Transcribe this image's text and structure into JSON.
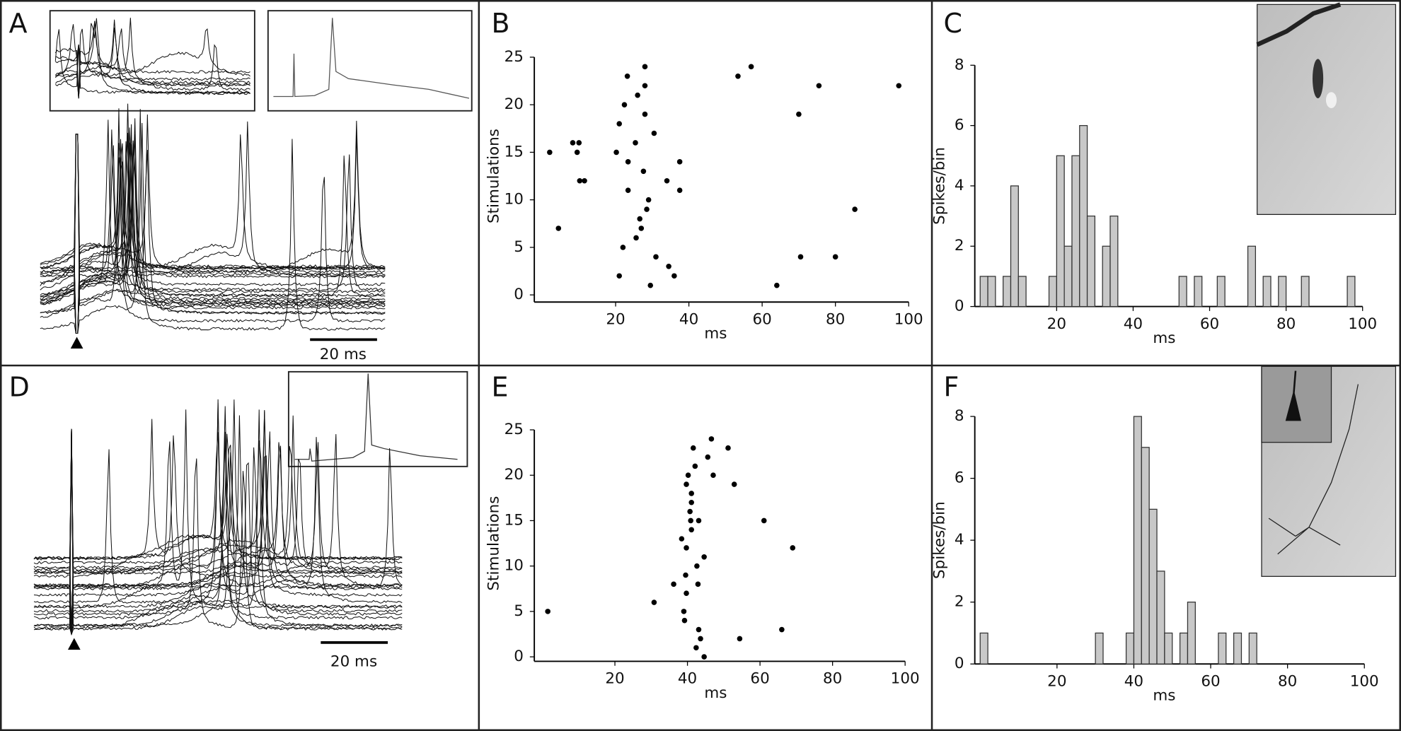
{
  "panel_labels": [
    "A",
    "B",
    "C",
    "D",
    "E",
    "F"
  ],
  "scale_bars": [
    "20 ms",
    "20 ms"
  ],
  "chart_data": [
    {
      "type": "scatter",
      "xlabel": "ms",
      "ylabel": "Stimulations",
      "color": "#000000",
      "x": [
        2,
        4.4,
        8.3,
        10,
        9.5,
        10.2,
        11.5,
        20.2,
        21,
        21,
        22,
        22.4,
        23.2,
        23.4,
        23.4,
        25.4,
        25.6,
        26,
        26.6,
        27,
        27.6,
        28,
        28,
        28,
        28.5,
        29,
        29.5,
        30.5,
        31,
        34,
        34.5,
        36,
        37.5,
        37.5,
        53.4,
        57,
        64,
        70,
        70.5,
        75.5,
        80,
        85.3,
        97.3
      ],
      "y": [
        15,
        7,
        16,
        16,
        15,
        12,
        12,
        15,
        18,
        2,
        5,
        20,
        23,
        14,
        11,
        16,
        6,
        21,
        8,
        7,
        13,
        24,
        22,
        19,
        9,
        10,
        1,
        17,
        4,
        12,
        3,
        2,
        11,
        14,
        23,
        24,
        1,
        19,
        4,
        22,
        4,
        9,
        22
      ],
      "xlim": [
        0,
        100
      ],
      "ylim": [
        0,
        25
      ],
      "xticks": [
        20,
        40,
        60,
        80,
        100
      ],
      "yticks": [
        0,
        5,
        10,
        15,
        20,
        25
      ]
    },
    {
      "type": "histogram",
      "xlabel": "ms",
      "ylabel": "Spikes/bin",
      "color": "#c8c8c8",
      "bins": [
        0,
        2,
        4,
        6,
        8,
        10,
        12,
        14,
        16,
        18,
        20,
        22,
        24,
        26,
        28,
        30,
        32,
        34,
        36,
        38,
        40,
        42,
        44,
        46,
        48,
        50,
        52,
        54,
        56,
        58,
        60,
        62,
        64,
        66,
        68,
        70,
        72,
        74,
        76,
        78,
        80,
        82,
        84,
        86,
        88,
        90,
        92,
        94,
        96,
        98,
        100
      ],
      "values": [
        1,
        1,
        0,
        1,
        4,
        1,
        0,
        0,
        0,
        1,
        5,
        2,
        5,
        6,
        3,
        0,
        2,
        3,
        0,
        0,
        0,
        0,
        0,
        0,
        0,
        0,
        1,
        0,
        1,
        0,
        0,
        1,
        0,
        0,
        0,
        2,
        0,
        1,
        0,
        1,
        0,
        0,
        1,
        0,
        0,
        0,
        0,
        0,
        1,
        0
      ],
      "xlim": [
        0,
        100
      ],
      "ylim": [
        0,
        8
      ],
      "xticks": [
        20,
        40,
        60,
        80,
        100
      ],
      "yticks": [
        0,
        2,
        4,
        6,
        8
      ]
    },
    {
      "type": "scatter",
      "xlabel": "ms",
      "ylabel": "Stimulations",
      "color": "#000000",
      "x": [
        1.5,
        30.8,
        36.2,
        38.4,
        39,
        39.2,
        39.5,
        39.7,
        39.7,
        39.7,
        40.2,
        40.7,
        40.9,
        41.1,
        41.1,
        41.1,
        41.6,
        42.1,
        42.4,
        42.6,
        42.9,
        43.1,
        43.1,
        43.6,
        44.6,
        44.6,
        45.6,
        46.6,
        47.1,
        51.2,
        52.9,
        54.4,
        61.1,
        66,
        69
      ],
      "y": [
        5,
        6,
        8,
        13,
        5,
        4,
        9,
        12,
        7,
        19,
        20,
        16,
        15,
        18,
        17,
        14,
        23,
        21,
        1,
        10,
        8,
        15,
        3,
        2,
        11,
        0,
        22,
        24,
        20,
        23,
        19,
        2,
        15,
        3,
        12
      ],
      "xlim": [
        0,
        100
      ],
      "ylim": [
        0,
        25
      ],
      "xticks": [
        20,
        40,
        60,
        80,
        100
      ],
      "yticks": [
        0,
        5,
        10,
        15,
        20,
        25
      ]
    },
    {
      "type": "histogram",
      "xlabel": "ms",
      "ylabel": "Spikes/bin",
      "color": "#c8c8c8",
      "bins": [
        0,
        2,
        4,
        6,
        8,
        10,
        12,
        14,
        16,
        18,
        20,
        22,
        24,
        26,
        28,
        30,
        32,
        34,
        36,
        38,
        40,
        42,
        44,
        46,
        48,
        50,
        52,
        54,
        56,
        58,
        60,
        62,
        64,
        66,
        68,
        70,
        72,
        74,
        76,
        78,
        80,
        82,
        84,
        86,
        88,
        90,
        92,
        94,
        96,
        98,
        100
      ],
      "values": [
        1,
        0,
        0,
        0,
        0,
        0,
        0,
        0,
        0,
        0,
        0,
        0,
        0,
        0,
        0,
        1,
        0,
        0,
        0,
        1,
        8,
        7,
        5,
        3,
        1,
        0,
        1,
        2,
        0,
        0,
        0,
        1,
        0,
        1,
        0,
        1,
        0,
        0,
        0,
        0,
        0,
        0,
        0,
        0,
        0,
        0,
        0,
        0,
        0,
        0
      ],
      "xlim": [
        0,
        100
      ],
      "ylim": [
        0,
        8
      ],
      "xticks": [
        20,
        40,
        60,
        80,
        100
      ],
      "yticks": [
        0,
        2,
        4,
        6,
        8
      ]
    }
  ]
}
